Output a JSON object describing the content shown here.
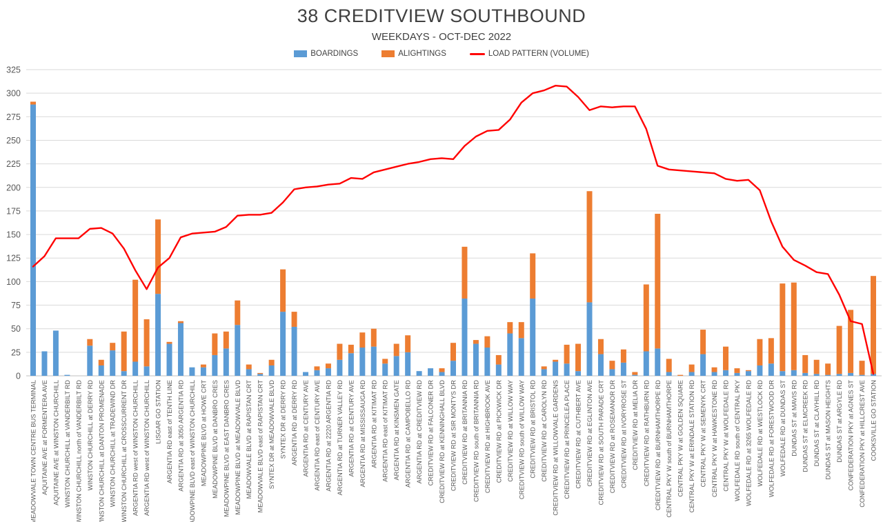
{
  "header": {
    "title": "38 CREDITVIEW SOUTHBOUND",
    "subtitle": "WEEKDAYS - OCT-DEC 2022"
  },
  "colors": {
    "boardings": "#5B9BD5",
    "alightings": "#ED7D31",
    "load_line": "#FF0000",
    "gridline": "#D9D9D9",
    "axis_line": "#BFBFBF",
    "tick_text": "#595959",
    "title_text": "#404040"
  },
  "legend": {
    "items": [
      {
        "label": "BOARDINGS",
        "color": "#5B9BD5",
        "marker": "box"
      },
      {
        "label": "ALIGHTINGS",
        "color": "#ED7D31",
        "marker": "box"
      },
      {
        "label": "LOAD PATTERN (VOLUME)",
        "color": "#FF0000",
        "marker": "line"
      }
    ]
  },
  "chart_data": {
    "type": "bar",
    "title": "38 CREDITVIEW SOUTHBOUND",
    "subtitle": "WEEKDAYS - OCT-DEC 2022",
    "xlabel": "",
    "ylabel": "",
    "ylim": [
      0,
      325
    ],
    "y_step": 25,
    "grid": true,
    "legend_position": "top",
    "bar_mode": "stacked",
    "categories": [
      "MEADOWVALE TOWN CENTRE BUS TERMINAL",
      "AQUITAINE AVE at FORMENTERA AVE",
      "AQUITAINE AVE at WINSTON CHURCHILL",
      "WINSTON CHURCHILL at VANDERBILT RD",
      "WINSTON CHURCHILL north of VANDERBILT RD",
      "WINSTON CHURCHILL at DERRY RD",
      "WINSTON CHURCHILL at DANTON PROMENADE",
      "WINSTON CHURCHILL at TRADEWIND DR",
      "WINSTON CHURCHILL at CROSSCURRENT DR",
      "ARGENTIA RD west of WINSTON CHURCHILL",
      "ARGENTIA RD west of WINSTON CHURCHILL",
      "LISGAR GO STATION",
      "ARGENTIA RD east of TENTH LINE",
      "ARGENTIA RD at 3050 ARGENTIA RD",
      "MEADOWPINE BLVD east of WINSTON CHURCHILL",
      "MEADOWPINE BLVD at HOWE CRT",
      "MEADOWPINE BLVD at DANBRO CRES",
      "MEADOWPINE BLVD at EAST DANBRO CRES",
      "MEADOWPINE BLVD at MEADOWVALE BLVD",
      "MEADOWVALE BLVD at RAPISTAN CRT",
      "MEADOWVALE BLVD east of RAPISTAN CRT",
      "SYNTEX DR at MEADOWVALE BLVD",
      "SYNTEX DR at DERRY RD",
      "ARGENTIA RD at DERRY RD",
      "ARGENTIA RD at CENTURY AVE",
      "ARGENTIA RD east of CENTURY AVE",
      "ARGENTIA RD at 2220 ARGENTIA RD",
      "ARGENTIA RD at TURNER VALLEY RD",
      "ARGENTIA RD at CENTURY AVE",
      "ARGENTIA RD at MISSISSAUGA RD",
      "ARGENTIA RD at KITIMAT RD",
      "ARGENTIA RD east of KITIMAT RD",
      "ARGENTIA RD at KINSMEN GATE",
      "ARGENTIA RD at CAMPOBELLO RD",
      "ARGENTIA RD at CREDITVIEW RD",
      "CREDITVIEW RD at FALCONER DR",
      "CREDITVIEW RD at KENNINGHALL BLVD",
      "CREDITVIEW RD at SIR MONTYS DR",
      "CREDITVIEW RD at BRITANNIA RD",
      "CREDITVIEW RD south of BRITANNIA RD",
      "CREDITVIEW RD at HIGHBROOK AVE",
      "CREDITVIEW RD at PICKWICK DR",
      "CREDITVIEW RD at WILLOW WAY",
      "CREDITVIEW RD south of WILLOW WAY",
      "CREDITVIEW RD at BRISTOL RD",
      "CREDITVIEW RD at CAROLYN RD",
      "CREDITVIEW RD at WILLOWVALE GARDENS",
      "CREDITVIEW RD at PRINCELEA PLACE",
      "CREDITVIEW RD at CUTHBERT AVE",
      "CREDITVIEW RD at EGLINTON AVE",
      "CREDITVIEW RD at SOUTH PARADE CRT",
      "CREDITVIEW RD at ROSEMANOR DR",
      "CREDITVIEW RD at IVORYROSE ST",
      "CREDITVIEW RD at MELIA DR",
      "CREDITVIEW RD at RATHBURN RD",
      "CREDITVIEW RD at BURNHAMTHORPE RD",
      "CENTRAL PKY W south of BURNHAMTHORPE",
      "CENTRAL PKY W at GOLDEN SQUARE",
      "CENTRAL PKY W at ERINDALE STATION RD",
      "CENTRAL PKY W at SEMENYK CRT",
      "CENTRAL PKY W at HAWKESTONE RD",
      "CENTRAL PKY W at WOLFEDALE RD",
      "WOLFEDALE RD south of CENTRAL PKY",
      "WOLFEDALE RD at 3265 WOLFEDALE RD",
      "WOLFEDALE RD at WESTLOCK RD",
      "WOLFEDALE RD at FORESTWOOD DR",
      "WOLFEDALE RD at DUNDAS ST",
      "DUNDAS ST at MAVIS RD",
      "DUNDAS ST at ELMCREEK RD",
      "DUNDAS ST at CLAYHILL RD",
      "DUNDAS ST at MASON HEIGHTS",
      "DUNDAS ST at ARGYLE RD",
      "CONFEDERATION PKY at AGNES ST",
      "CONFEDERATION PKY at HILLCREST AVE",
      "COOKSVILLE GO STATION"
    ],
    "series": [
      {
        "name": "BOARDINGS",
        "type": "bar",
        "color": "#5B9BD5",
        "values": [
          288,
          26,
          48,
          1,
          0,
          32,
          11,
          27,
          5,
          15,
          10,
          87,
          34,
          56,
          9,
          9,
          22,
          29,
          54,
          7,
          2,
          11,
          68,
          52,
          4,
          6,
          8,
          17,
          24,
          30,
          31,
          13,
          21,
          25,
          5,
          8,
          4,
          16,
          82,
          34,
          30,
          12,
          45,
          40,
          82,
          7,
          15,
          13,
          5,
          78,
          23,
          7,
          14,
          1,
          26,
          29,
          4,
          0,
          4,
          23,
          4,
          6,
          3,
          5,
          11,
          13,
          5,
          6,
          3,
          2,
          1,
          2,
          3,
          1,
          2
        ]
      },
      {
        "name": "ALIGHTINGS",
        "type": "bar",
        "color": "#ED7D31",
        "values": [
          3,
          0,
          0,
          0,
          0,
          7,
          6,
          8,
          42,
          87,
          50,
          79,
          2,
          2,
          0,
          3,
          23,
          18,
          26,
          5,
          1,
          6,
          45,
          16,
          0,
          4,
          5,
          17,
          9,
          16,
          19,
          5,
          13,
          18,
          0,
          0,
          4,
          19,
          55,
          4,
          12,
          10,
          12,
          17,
          48,
          3,
          2,
          20,
          29,
          118,
          16,
          9,
          14,
          3,
          71,
          143,
          14,
          1,
          8,
          26,
          5,
          25,
          5,
          1,
          28,
          27,
          93,
          93,
          19,
          15,
          12,
          51,
          67,
          15,
          104
        ]
      },
      {
        "name": "LOAD PATTERN (VOLUME)",
        "type": "line",
        "color": "#FF0000",
        "values": [
          116,
          127,
          146,
          146,
          146,
          156,
          157,
          151,
          135,
          112,
          92,
          115,
          125,
          147,
          151,
          152,
          153,
          158,
          170,
          171,
          171,
          173,
          184,
          198,
          200,
          201,
          203,
          204,
          210,
          209,
          216,
          219,
          222,
          225,
          227,
          230,
          231,
          230,
          244,
          254,
          260,
          261,
          272,
          290,
          300,
          303,
          308,
          307,
          296,
          282,
          286,
          285,
          286,
          286,
          262,
          223,
          219,
          218,
          217,
          216,
          215,
          209,
          207,
          208,
          197,
          164,
          137,
          123,
          117,
          110,
          108,
          86,
          58,
          55,
          2
        ]
      }
    ]
  }
}
